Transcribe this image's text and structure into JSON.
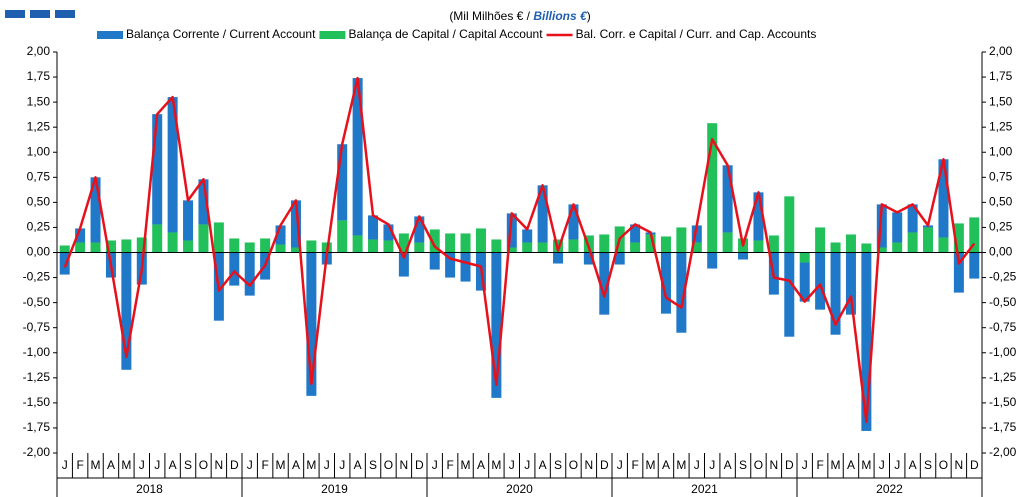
{
  "chart_data": {
    "type": "bar",
    "subtitle": [
      "(Mil Milhões  € / ",
      "Billions €",
      ")"
    ],
    "categories": [
      "J",
      "F",
      "M",
      "A",
      "M",
      "J",
      "J",
      "A",
      "S",
      "O",
      "N",
      "D",
      "J",
      "F",
      "M",
      "A",
      "M",
      "J",
      "J",
      "A",
      "S",
      "O",
      "N",
      "D",
      "J",
      "F",
      "M",
      "A",
      "M",
      "J",
      "J",
      "A",
      "S",
      "O",
      "N",
      "D",
      "J",
      "F",
      "M",
      "A",
      "M",
      "J",
      "J",
      "A",
      "S",
      "O",
      "N",
      "D",
      "J",
      "F",
      "M",
      "A",
      "M",
      "J",
      "J",
      "A",
      "S",
      "O",
      "N",
      "D"
    ],
    "years": [
      "2018",
      "2019",
      "2020",
      "2021",
      "2022"
    ],
    "series": [
      {
        "name": "Balança Corrente / Current Account",
        "color": "#1f78c8",
        "kind": "bar",
        "values": [
          -0.22,
          0.14,
          0.65,
          -0.25,
          -1.17,
          -0.32,
          1.1,
          1.35,
          0.4,
          0.45,
          -0.68,
          -0.33,
          -0.43,
          -0.27,
          0.19,
          0.47,
          -1.43,
          -0.12,
          0.76,
          1.57,
          0.24,
          0.16,
          -0.24,
          0.26,
          -0.17,
          -0.25,
          -0.29,
          -0.38,
          -1.45,
          0.34,
          0.13,
          0.57,
          -0.11,
          0.35,
          -0.12,
          -0.62,
          -0.12,
          0.18,
          0.02,
          -0.61,
          -0.8,
          0.17,
          -0.16,
          0.67,
          -0.07,
          0.48,
          -0.42,
          -0.84,
          -0.39,
          -0.57,
          -0.82,
          -0.62,
          -1.78,
          0.43,
          0.3,
          0.28,
          0.02,
          0.78,
          -0.4,
          -0.26
        ]
      },
      {
        "name": "Balança de Capital / Capital Account",
        "color": "#22c05a",
        "kind": "bar",
        "values": [
          0.07,
          0.1,
          0.1,
          0.12,
          0.13,
          0.15,
          0.28,
          0.2,
          0.12,
          0.28,
          0.3,
          0.14,
          0.1,
          0.14,
          0.08,
          0.05,
          0.12,
          0.1,
          0.32,
          0.17,
          0.13,
          0.12,
          0.19,
          0.1,
          0.23,
          0.19,
          0.19,
          0.24,
          0.13,
          0.05,
          0.1,
          0.1,
          0.13,
          0.13,
          0.17,
          0.18,
          0.26,
          0.1,
          0.18,
          0.16,
          0.25,
          0.1,
          1.29,
          0.2,
          0.14,
          0.12,
          0.17,
          0.56,
          -0.1,
          0.25,
          0.1,
          0.18,
          0.09,
          0.05,
          0.1,
          0.2,
          0.25,
          0.15,
          0.29,
          0.35
        ]
      },
      {
        "name": "Bal. Corr. e Capital / Curr. and Cap. Accounts",
        "color": "#e8101a",
        "kind": "line",
        "values": [
          -0.15,
          0.24,
          0.75,
          -0.13,
          -1.04,
          -0.17,
          1.38,
          1.55,
          0.52,
          0.73,
          -0.38,
          -0.19,
          -0.33,
          -0.13,
          0.27,
          0.52,
          -1.31,
          -0.02,
          1.08,
          1.74,
          0.37,
          0.28,
          -0.05,
          0.36,
          0.06,
          -0.06,
          -0.1,
          -0.14,
          -1.32,
          0.39,
          0.23,
          0.67,
          0.02,
          0.48,
          0.05,
          -0.44,
          0.14,
          0.28,
          0.2,
          -0.45,
          -0.55,
          0.27,
          1.13,
          0.87,
          0.07,
          0.6,
          -0.25,
          -0.28,
          -0.49,
          -0.32,
          -0.72,
          -0.44,
          -1.69,
          0.48,
          0.4,
          0.48,
          0.27,
          0.93,
          -0.11,
          0.09
        ]
      }
    ],
    "ylim": [
      -2,
      2
    ],
    "yticks": [
      {
        "value": 2,
        "label": "2,00"
      },
      {
        "value": 1.75,
        "label": "1,75"
      },
      {
        "value": 1.5,
        "label": "1,50"
      },
      {
        "value": 1.25,
        "label": "1,25"
      },
      {
        "value": 1,
        "label": "1,00"
      },
      {
        "value": 0.75,
        "label": "0,75"
      },
      {
        "value": 0.5,
        "label": "0,50"
      },
      {
        "value": 0.25,
        "label": "0,25"
      },
      {
        "value": 0,
        "label": "0,00"
      },
      {
        "value": -0.25,
        "label": "-0,25"
      },
      {
        "value": -0.5,
        "label": "-0,50"
      },
      {
        "value": -0.75,
        "label": "-0,75"
      },
      {
        "value": -1,
        "label": "-1,00"
      },
      {
        "value": -1.25,
        "label": "-1,25"
      },
      {
        "value": -1.5,
        "label": "-1,50"
      },
      {
        "value": -1.75,
        "label": "-1,75"
      },
      {
        "value": -2,
        "label": "-2,00"
      }
    ],
    "y2lim": [
      -2,
      2
    ],
    "y2ticks": [
      {
        "value": 2,
        "label": "2,00"
      },
      {
        "value": 1.75,
        "label": "1,75"
      },
      {
        "value": 1.5,
        "label": "1,50"
      },
      {
        "value": 1.25,
        "label": "1,25"
      },
      {
        "value": 1,
        "label": "1,00"
      },
      {
        "value": 0.75,
        "label": "0,75"
      },
      {
        "value": 0.5,
        "label": "0,50"
      },
      {
        "value": 0.25,
        "label": "0,25"
      },
      {
        "value": 0,
        "label": "0,00"
      },
      {
        "value": -0.25,
        "label": "-0,25"
      },
      {
        "value": -0.5,
        "label": "-0,50"
      },
      {
        "value": -0.75,
        "label": "-0,75"
      },
      {
        "value": -1,
        "label": "-1,00"
      },
      {
        "value": -1.25,
        "label": "-1,25"
      },
      {
        "value": -1.5,
        "label": "-1,50"
      },
      {
        "value": -1.75,
        "label": "-1,75"
      },
      {
        "value": -2,
        "label": "-2,00"
      }
    ],
    "legend": "top",
    "grid": false
  }
}
